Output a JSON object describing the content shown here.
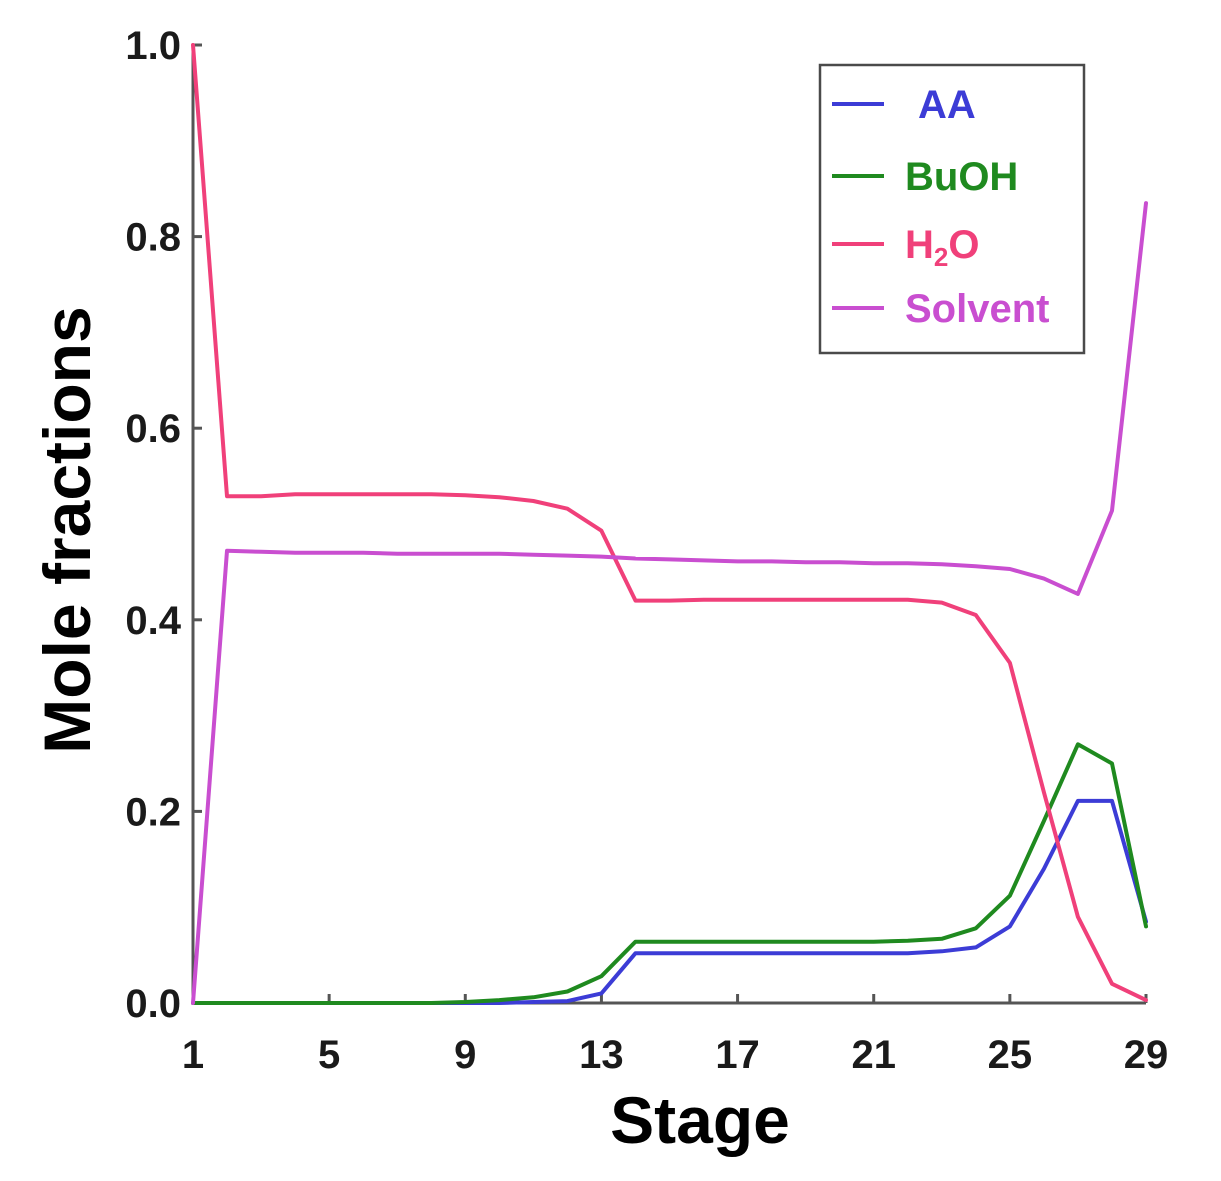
{
  "chart_data": {
    "type": "line",
    "xlabel": "Stage",
    "ylabel": "Mole fractions",
    "xlim": [
      1,
      29
    ],
    "ylim": [
      0,
      1
    ],
    "x_ticks": [
      "1",
      "5",
      "9",
      "13",
      "17",
      "21",
      "25",
      "29"
    ],
    "y_ticks": [
      "0.0",
      "0.2",
      "0.4",
      "0.6",
      "0.8",
      "1.0"
    ],
    "grid": false,
    "legend_position": "top-right",
    "x": [
      1,
      2,
      3,
      4,
      5,
      6,
      7,
      8,
      9,
      10,
      11,
      12,
      13,
      14,
      15,
      16,
      17,
      18,
      19,
      20,
      21,
      22,
      23,
      24,
      25,
      26,
      27,
      28,
      29
    ],
    "series": [
      {
        "name": "AA",
        "color": "#3c3cd6",
        "values": [
          0,
          0,
          0,
          0,
          0,
          0,
          0,
          0,
          0,
          0,
          0.001,
          0.002,
          0.01,
          0.052,
          0.052,
          0.052,
          0.052,
          0.052,
          0.052,
          0.052,
          0.052,
          0.052,
          0.054,
          0.058,
          0.08,
          0.14,
          0.211,
          0.211,
          0.085
        ]
      },
      {
        "name": "BuOH",
        "color": "#1f8a1f",
        "values": [
          0,
          0,
          0,
          0,
          0,
          0,
          0,
          0,
          0.001,
          0.003,
          0.006,
          0.012,
          0.028,
          0.064,
          0.064,
          0.064,
          0.064,
          0.064,
          0.064,
          0.064,
          0.064,
          0.065,
          0.067,
          0.078,
          0.112,
          0.19,
          0.27,
          0.25,
          0.08
        ]
      },
      {
        "name": "H",
        "name_subscript": "2",
        "name_suffix": "O",
        "color": "#f0407a",
        "values": [
          1.0,
          0.529,
          0.529,
          0.531,
          0.531,
          0.531,
          0.531,
          0.531,
          0.53,
          0.528,
          0.524,
          0.516,
          0.493,
          0.42,
          0.42,
          0.421,
          0.421,
          0.421,
          0.421,
          0.421,
          0.421,
          0.421,
          0.418,
          0.405,
          0.355,
          0.22,
          0.09,
          0.02,
          0.003
        ]
      },
      {
        "name": "Solvent",
        "color": "#c94ed0",
        "values": [
          0,
          0.472,
          0.471,
          0.47,
          0.47,
          0.47,
          0.469,
          0.469,
          0.469,
          0.469,
          0.468,
          0.467,
          0.466,
          0.464,
          0.463,
          0.462,
          0.461,
          0.461,
          0.46,
          0.46,
          0.459,
          0.459,
          0.458,
          0.456,
          0.453,
          0.443,
          0.427,
          0.514,
          0.835
        ]
      }
    ]
  }
}
